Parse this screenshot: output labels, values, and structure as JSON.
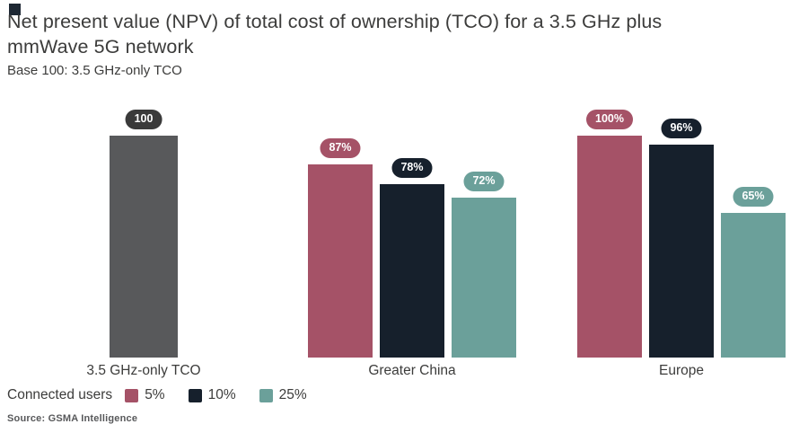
{
  "header": {
    "title_line1": "Net present value (NPV) of total cost of ownership (TCO) for a 3.5 GHz plus",
    "title_line2": "mmWave 5G network",
    "subtitle": "Base 100: 3.5 GHz-only TCO"
  },
  "chart_data": {
    "type": "bar",
    "title": "Net present value (NPV) of total cost of ownership (TCO) for a 3.5 GHz plus mmWave 5G network",
    "subtitle": "Base 100: 3.5 GHz-only TCO",
    "ylim": [
      0,
      100
    ],
    "grid": false,
    "legend_position": "bottom-left",
    "groups": [
      {
        "category": "3.5 GHz-only TCO",
        "bars": [
          {
            "series": "base",
            "label": "100",
            "value": 100,
            "color": "#58595b",
            "badge_color": "#3a3a3a"
          }
        ]
      },
      {
        "category": "Greater China",
        "bars": [
          {
            "series": "5%",
            "label": "87%",
            "value": 87,
            "color": "#a55267",
            "badge_color": "#a55267"
          },
          {
            "series": "10%",
            "label": "78%",
            "value": 78,
            "color": "#16202c",
            "badge_color": "#16202c"
          },
          {
            "series": "25%",
            "label": "72%",
            "value": 72,
            "color": "#6ba09a",
            "badge_color": "#6ba09a"
          }
        ]
      },
      {
        "category": "Europe",
        "bars": [
          {
            "series": "5%",
            "label": "100%",
            "value": 100,
            "color": "#a55267",
            "badge_color": "#a55267"
          },
          {
            "series": "10%",
            "label": "96%",
            "value": 96,
            "color": "#16202c",
            "badge_color": "#16202c"
          },
          {
            "series": "25%",
            "label": "65%",
            "value": 65,
            "color": "#6ba09a",
            "badge_color": "#6ba09a"
          }
        ]
      }
    ],
    "legend": {
      "title": "Connected users",
      "entries": [
        {
          "label": "5%",
          "color": "#a55267"
        },
        {
          "label": "10%",
          "color": "#16202c"
        },
        {
          "label": "25%",
          "color": "#6ba09a"
        }
      ]
    },
    "source": "Source: GSMA Intelligence"
  }
}
